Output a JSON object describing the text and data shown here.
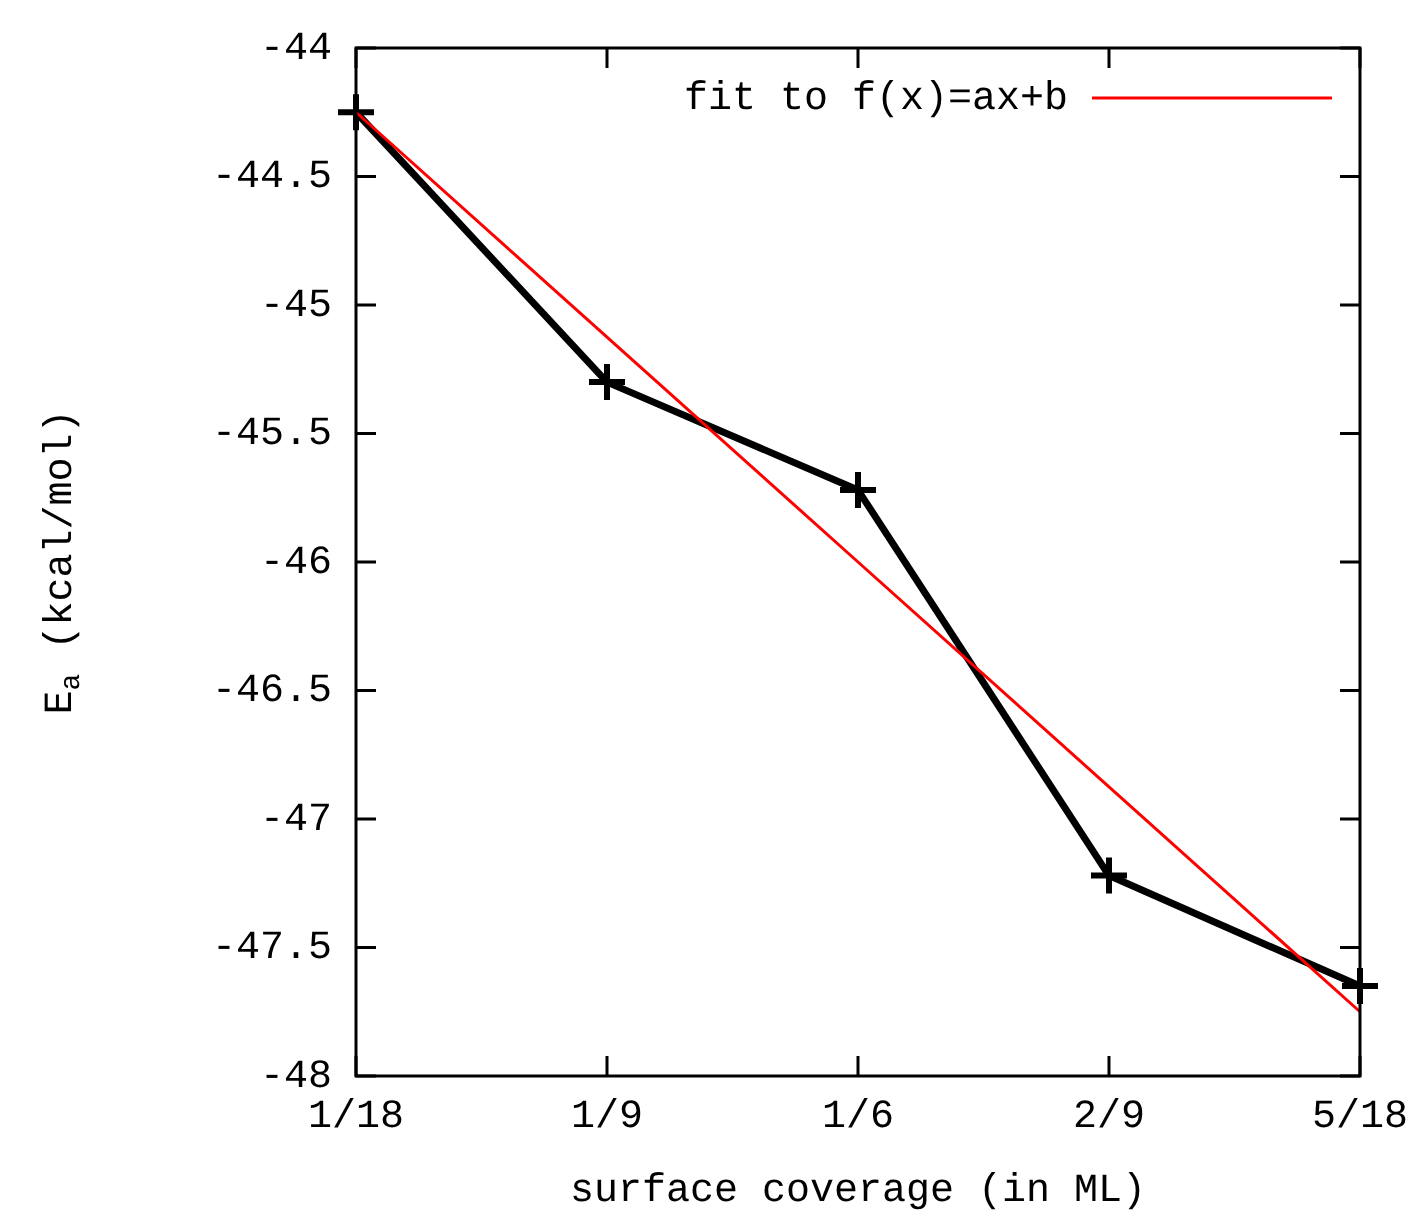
{
  "chart_data": {
    "type": "line",
    "xlabel": "surface coverage (in ML)",
    "ylabel": "E$_{a}$ (kcal/mol)",
    "categories": [
      "1/18",
      "1/9",
      "1/6",
      "2/9",
      "5/18"
    ],
    "series": [
      {
        "color": "#000000",
        "values": [
          -44.25,
          -45.3,
          -45.72,
          -47.22,
          -47.65
        ],
        "marker": "cross"
      },
      {
        "name": "fit to f(x)=ax+b",
        "color": "#ff0000",
        "values": [
          -44.25,
          -45.125,
          -46.0,
          -46.875,
          -47.75
        ],
        "marker": "none"
      }
    ],
    "ylim": [
      -48,
      -44
    ],
    "yticks": [
      -48,
      -47.5,
      -47,
      -46.5,
      -46,
      -45.5,
      -45,
      -44.5,
      -44
    ],
    "grid": false,
    "legend": "top right",
    "line_style": "solid"
  }
}
